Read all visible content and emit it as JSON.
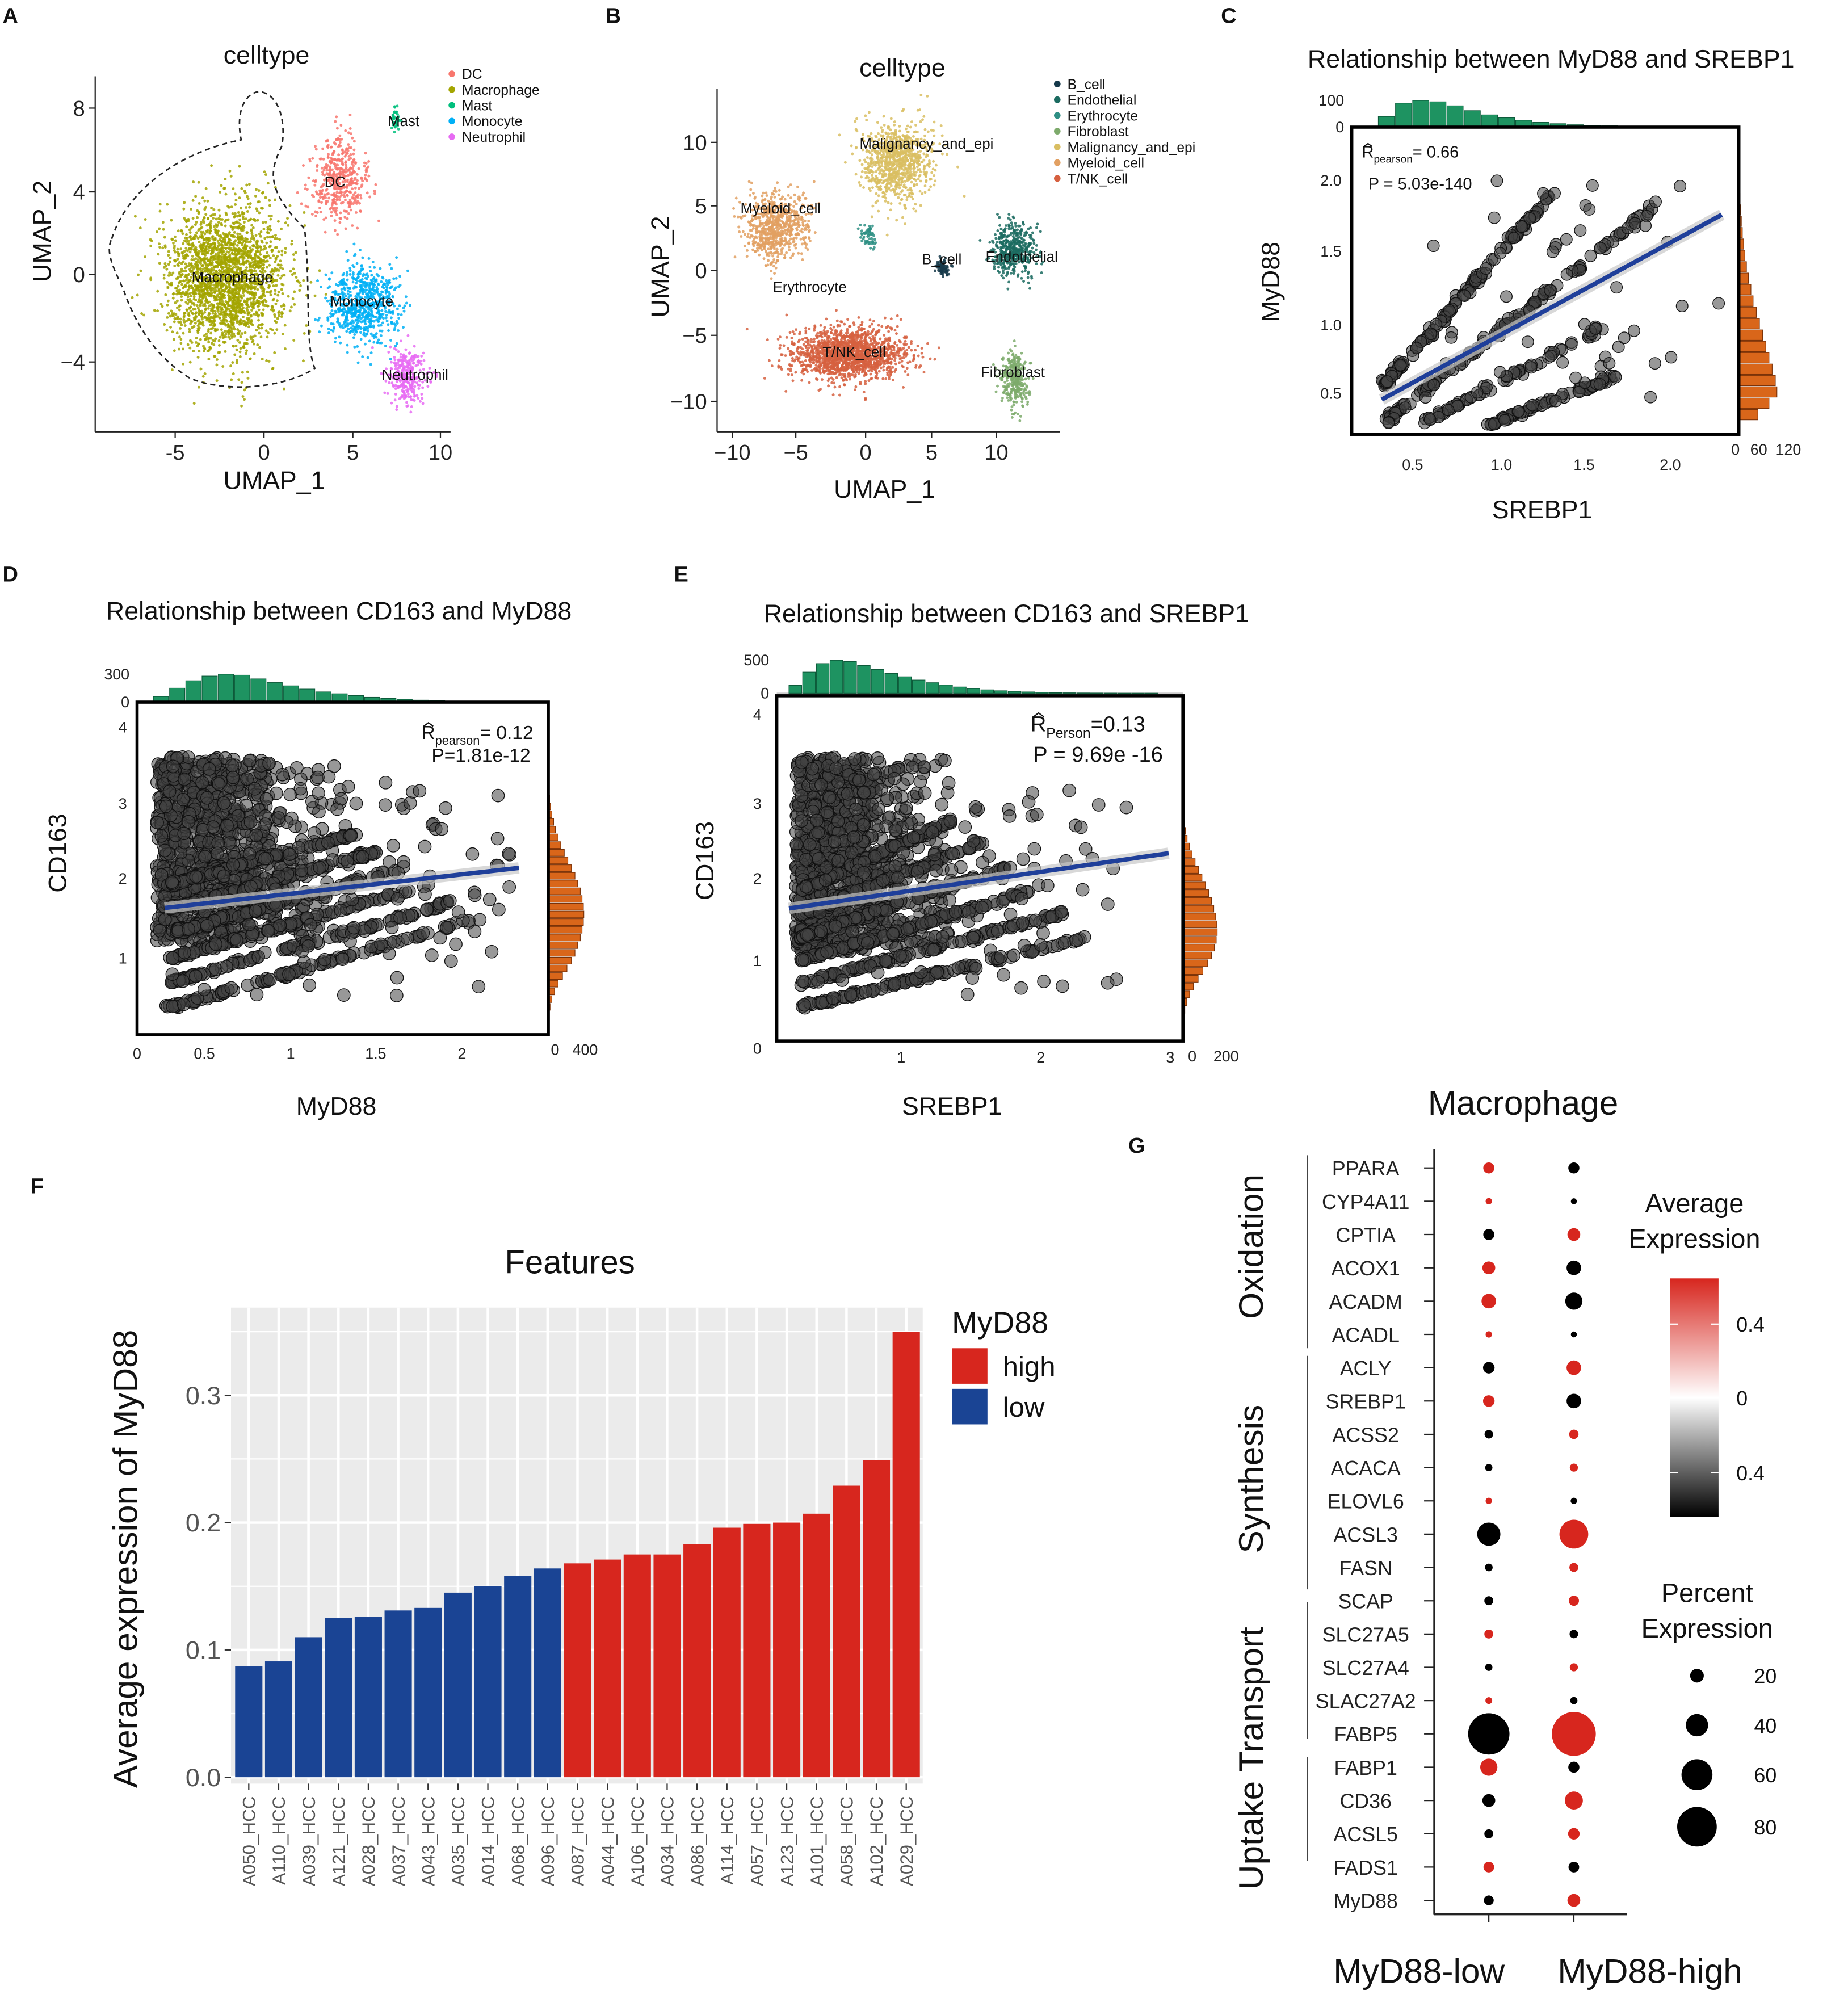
{
  "panel_letters": [
    "A",
    "B",
    "C",
    "D",
    "E",
    "F",
    "G"
  ],
  "chart_data": [
    {
      "id": "A",
      "type": "scatter",
      "title": "celltype",
      "xlabel": "UMAP_1",
      "ylabel": "UMAP_2",
      "xticks": [
        "-5",
        "0",
        "5",
        "10"
      ],
      "yticks": [
        "8",
        "4",
        "0",
        "−4"
      ],
      "xlim": [
        -9.5,
        10.5
      ],
      "ylim": [
        -7.3,
        9
      ],
      "legend_position": "top-right",
      "clusters": [
        {
          "name": "DC",
          "color": "#F8766D",
          "center": [
            4.2,
            4.4
          ],
          "spread": [
            1.6,
            2.0
          ],
          "n": 450
        },
        {
          "name": "Macrophage",
          "color": "#A3A500",
          "center": [
            -2.2,
            -0.2
          ],
          "spread": [
            3.3,
            3.4
          ],
          "n": 2400
        },
        {
          "name": "Mast",
          "color": "#00BF7D",
          "center": [
            7.5,
            7.2
          ],
          "spread": [
            0.25,
            0.5
          ],
          "n": 40
        },
        {
          "name": "Monocyte",
          "color": "#00B0F6",
          "center": [
            5.6,
            -1.4
          ],
          "spread": [
            2.0,
            1.8
          ],
          "n": 700
        },
        {
          "name": "Neutrophil",
          "color": "#E76BF3",
          "center": [
            8.1,
            -4.8
          ],
          "spread": [
            1.2,
            1.2
          ],
          "n": 300
        }
      ]
    },
    {
      "id": "B",
      "type": "scatter",
      "title": "celltype",
      "xlabel": "UMAP_1",
      "ylabel": "UMAP_2",
      "xticks": [
        "−10",
        "−5",
        "0",
        "5",
        "10"
      ],
      "yticks": [
        "10",
        "5",
        "0",
        "−5",
        "−10"
      ],
      "xlim": [
        -11,
        15
      ],
      "ylim": [
        -12,
        14
      ],
      "legend_position": "top-right",
      "clusters": [
        {
          "name": "B_cell",
          "color": "#16394A",
          "center": [
            5.8,
            0.2
          ],
          "spread": [
            0.5,
            0.6
          ],
          "n": 80
        },
        {
          "name": "Endothelial",
          "color": "#1B6B60",
          "center": [
            11.2,
            1.6
          ],
          "spread": [
            1.6,
            2.1
          ],
          "n": 450
        },
        {
          "name": "Erythrocyte",
          "color": "#2E8F84",
          "center": [
            0.2,
            2.6
          ],
          "spread": [
            0.6,
            0.9
          ],
          "n": 60
        },
        {
          "name": "Fibroblast",
          "color": "#7DAA6B",
          "center": [
            11.3,
            -8.4
          ],
          "spread": [
            1.0,
            2.2
          ],
          "n": 300
        },
        {
          "name": "Malignancy_and_epi",
          "color": "#D9BE62",
          "center": [
            2.4,
            8.4
          ],
          "spread": [
            2.6,
            3.0
          ],
          "n": 900
        },
        {
          "name": "Myeloid_cell",
          "color": "#E2A062",
          "center": [
            -6.7,
            3.4
          ],
          "spread": [
            2.4,
            2.6
          ],
          "n": 700
        },
        {
          "name": "T/NK_cell",
          "color": "#D6603F",
          "center": [
            -1.2,
            -6.4
          ],
          "spread": [
            4.2,
            2.0
          ],
          "n": 1600
        }
      ]
    },
    {
      "id": "C",
      "type": "scatter",
      "title": "Relationship between MyD88 and SREBP1",
      "xlabel": "SREBP1",
      "ylabel": "MyD88",
      "xticks": [
        "0.5",
        "1.0",
        "1.5",
        "2.0"
      ],
      "yticks": [
        "2.0",
        "1.5",
        "1.0",
        "0.5"
      ],
      "stats": {
        "r_label": "R",
        "r_sub": "pearson",
        "r_value": "= 0.66",
        "p_text": "P = 5.03e-140"
      },
      "regression": [
        [
          0.32,
          0.45
        ],
        [
          2.3,
          1.75
        ]
      ],
      "streaks": [
        [
          0.33,
          0.55,
          1.3,
          1.88
        ],
        [
          0.35,
          0.3,
          1.95,
          1.85
        ],
        [
          0.55,
          0.28,
          1.6,
          0.95
        ],
        [
          0.95,
          0.28,
          1.7,
          0.62
        ]
      ],
      "top_hist": {
        "axis_ticks": [
          "100",
          "0"
        ],
        "bin_start": 0.3,
        "bin_width": 0.1,
        "max": 100,
        "counts": [
          40,
          90,
          100,
          95,
          80,
          62,
          46,
          35,
          26,
          18,
          13,
          9,
          6,
          5,
          4,
          3,
          2,
          2,
          1,
          1
        ]
      },
      "right_hist": {
        "axis_ticks": [
          "0",
          "60",
          "120"
        ],
        "bin_start": 0.3,
        "bin_width": 0.08,
        "max": 120,
        "counts": [
          60,
          95,
          120,
          115,
          105,
          95,
          85,
          75,
          65,
          55,
          45,
          38,
          30,
          24,
          19,
          15,
          11,
          8,
          6,
          4,
          3,
          2,
          2
        ]
      }
    },
    {
      "id": "D",
      "type": "scatter",
      "title": "Relationship between CD163 and MyD88",
      "xlabel": "MyD88",
      "ylabel": "CD163",
      "xticks": [
        "0",
        "0.5",
        "1",
        "1.5",
        "2"
      ],
      "yticks": [
        "4",
        "3",
        "2",
        "1"
      ],
      "stats": {
        "r_label": "R",
        "r_sub": "pearson",
        "r_value": "= 0.12",
        "p_text": "P=1.81e-12"
      },
      "regression": [
        [
          0.17,
          1.64
        ],
        [
          2.35,
          2.16
        ]
      ],
      "top_hist": {
        "axis_ticks": [
          "300",
          "0"
        ],
        "bin_start": 0.1,
        "bin_width": 0.1,
        "max": 300,
        "counts": [
          60,
          150,
          230,
          280,
          300,
          290,
          250,
          210,
          175,
          140,
          110,
          90,
          70,
          52,
          40,
          30,
          22,
          15,
          10,
          6,
          4,
          2,
          1
        ]
      },
      "right_hist": {
        "axis_ticks": [
          "0",
          "400"
        ],
        "bin_start": 0.3,
        "bin_width": 0.1,
        "max": 400,
        "counts": [
          20,
          40,
          70,
          110,
          160,
          210,
          260,
          300,
          330,
          360,
          380,
          395,
          400,
          395,
          380,
          360,
          330,
          300,
          260,
          220,
          180,
          140,
          110,
          80,
          60,
          40,
          25,
          15,
          8,
          4,
          2,
          1
        ]
      }
    },
    {
      "id": "E",
      "type": "scatter",
      "title": "Relationship between CD163 and SREBP1",
      "xlabel": "SREBP1",
      "ylabel": "CD163",
      "xticks": [
        "1",
        "2",
        "3"
      ],
      "yticks": [
        "4",
        "3",
        "2",
        "1",
        "0"
      ],
      "stats": {
        "r_label": "R",
        "r_sub": "Person",
        "r_value": "=0.13",
        "p_text": "P = 9.69e -16"
      },
      "regression": [
        [
          0.2,
          1.66
        ],
        [
          2.97,
          2.37
        ]
      ],
      "top_hist": {
        "axis_ticks": [
          "500",
          "0"
        ],
        "bin_start": 0.2,
        "bin_width": 0.1,
        "max": 500,
        "counts": [
          120,
          320,
          450,
          500,
          480,
          420,
          360,
          300,
          250,
          200,
          160,
          125,
          95,
          70,
          52,
          38,
          28,
          20,
          14,
          9,
          6,
          4,
          3,
          2,
          1,
          1,
          1
        ]
      },
      "right_hist": {
        "axis_ticks": [
          "0",
          "200"
        ],
        "bin_start": 0.3,
        "bin_width": 0.1,
        "max": 200,
        "counts": [
          10,
          20,
          35,
          55,
          80,
          105,
          130,
          150,
          165,
          175,
          180,
          178,
          172,
          162,
          150,
          135,
          118,
          100,
          82,
          64,
          48,
          34,
          22,
          13,
          7,
          3,
          1
        ]
      }
    },
    {
      "id": "F",
      "type": "bar",
      "title": "Features",
      "xlabel": "",
      "ylabel": "Average expression of MyD88",
      "ylim": [
        0,
        0.37
      ],
      "yticks": [
        "0.0",
        "0.1",
        "0.2",
        "0.3"
      ],
      "grid": true,
      "legend_title": "MyD88",
      "legend_position": "right",
      "groups": [
        {
          "name": "high",
          "color": "#D7261E"
        },
        {
          "name": "low",
          "color": "#1A4494"
        }
      ],
      "categories": [
        "A050_HCC",
        "A110_HCC",
        "A039_HCC",
        "A121_HCC",
        "A028_HCC",
        "A037_HCC",
        "A043_HCC",
        "A035_HCC",
        "A014_HCC",
        "A068_HCC",
        "A096_HCC",
        "A087_HCC",
        "A044_HCC",
        "A106_HCC",
        "A034_HCC",
        "A086_HCC",
        "A114_HCC",
        "A057_HCC",
        "A123_HCC",
        "A101_HCC",
        "A058_HCC",
        "A102_HCC",
        "A029_HCC"
      ],
      "values": [
        0.087,
        0.091,
        0.11,
        0.125,
        0.126,
        0.131,
        0.133,
        0.145,
        0.15,
        0.158,
        0.164,
        0.168,
        0.171,
        0.175,
        0.175,
        0.183,
        0.196,
        0.199,
        0.2,
        0.207,
        0.229,
        0.249,
        0.35
      ],
      "group": [
        "low",
        "low",
        "low",
        "low",
        "low",
        "low",
        "low",
        "low",
        "low",
        "low",
        "low",
        "high",
        "high",
        "high",
        "high",
        "high",
        "high",
        "high",
        "high",
        "high",
        "high",
        "high",
        "high"
      ]
    },
    {
      "id": "G",
      "type": "scatter",
      "subtype": "dotplot",
      "title": "Macrophage",
      "columns": [
        "MyD88-low",
        "MyD88-high"
      ],
      "categories": [
        {
          "name": "Oxidation",
          "genes": [
            "PPARA",
            "CYP4A11",
            "CPTIA",
            "ACOX1",
            "ACADM",
            "ACADL"
          ]
        },
        {
          "name": "Synthesis",
          "genes": [
            "ACLY",
            "SREBP1",
            "ACSS2",
            "ACACA",
            "ELOVL6",
            "ACSL3",
            "FASN",
            "SCAP"
          ]
        },
        {
          "name": "Uptake Transport",
          "genes": [
            "SLC27A5",
            "SLC27A4",
            "SLAC27A2",
            "FABP5",
            "FABP1",
            "CD36",
            "ACSL5",
            "FADS1",
            "MyD88"
          ]
        }
      ],
      "genes": [
        "PPARA",
        "CYP4A11",
        "CPTIA",
        "ACOX1",
        "ACADM",
        "ACADL",
        "ACLY",
        "SREBP1",
        "ACSS2",
        "ACACA",
        "ELOVL6",
        "ACSL3",
        "FASN",
        "SCAP",
        "SLC27A5",
        "SLC27A4",
        "SLAC27A2",
        "FABP5",
        "FABP1",
        "CD36",
        "ACSL5",
        "FADS1",
        "MyD88"
      ],
      "avg_expression_low": [
        0.5,
        0.5,
        -0.5,
        0.5,
        0.5,
        0.5,
        -0.5,
        0.5,
        -0.5,
        -0.5,
        0.5,
        -0.5,
        -0.5,
        -0.5,
        0.5,
        -0.5,
        0.5,
        -0.5,
        0.5,
        -0.5,
        -0.5,
        0.5,
        -0.5
      ],
      "avg_expression_high": [
        -0.5,
        -0.5,
        0.5,
        -0.5,
        -0.5,
        -0.5,
        0.5,
        -0.5,
        0.5,
        0.5,
        -0.5,
        0.5,
        0.5,
        0.5,
        -0.5,
        0.5,
        -0.5,
        0.5,
        -0.5,
        0.5,
        0.5,
        -0.5,
        0.5
      ],
      "pct_low": [
        14,
        3,
        14,
        18,
        22,
        3,
        15,
        15,
        8,
        5,
        3,
        42,
        6,
        9,
        9,
        5,
        4,
        84,
        28,
        18,
        9,
        13,
        11
      ],
      "pct_high": [
        14,
        2,
        18,
        22,
        28,
        2,
        22,
        22,
        10,
        7,
        3,
        55,
        9,
        12,
        8,
        7,
        5,
        90,
        14,
        30,
        15,
        13,
        18
      ],
      "color_legend": {
        "title_line1": "Average",
        "title_line2": "Expression",
        "ticks": [
          "0.4",
          "0",
          "0.4"
        ],
        "high_color": "#D7261E",
        "mid_color": "#FFFFFF",
        "low_color": "#000000"
      },
      "size_legend": {
        "title_line1": "Percent",
        "title_line2": "Expression",
        "values": [
          20,
          40,
          60,
          80
        ],
        "labels": [
          "20",
          "40",
          "60",
          "80"
        ]
      }
    }
  ]
}
